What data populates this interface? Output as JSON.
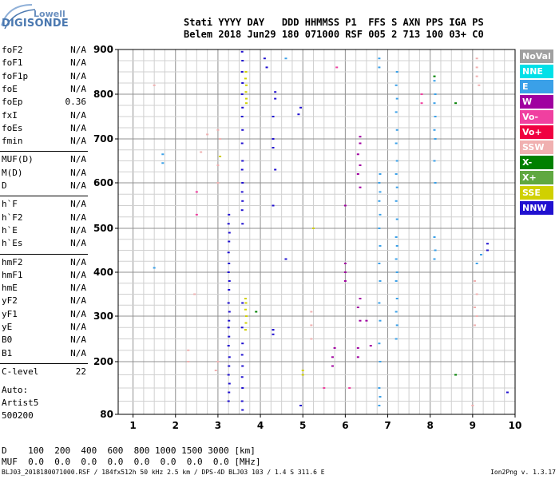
{
  "logo": {
    "line1": "Lowell",
    "line2": "DIGISONDE"
  },
  "header": {
    "line1": "Stati YYYY DAY   DDD HHMMSS P1  FFS S AXN PPS IGA PS",
    "line2": "Belem 2018 Jun29 180 071000 RSF 005 2 713 100 03+ C0"
  },
  "params": [
    {
      "group": 1,
      "name": "foF2",
      "value": "N/A"
    },
    {
      "group": 1,
      "name": "foF1",
      "value": "N/A"
    },
    {
      "group": 1,
      "name": "foF1p",
      "value": "N/A"
    },
    {
      "group": 1,
      "name": "foE",
      "value": "N/A"
    },
    {
      "group": 1,
      "name": "foEp",
      "value": "0.36"
    },
    {
      "group": 1,
      "name": "fxI",
      "value": "N/A"
    },
    {
      "group": 1,
      "name": "foEs",
      "value": "N/A"
    },
    {
      "group": 1,
      "name": "fmin",
      "value": "N/A"
    },
    {
      "group": 2,
      "name": "MUF(D)",
      "value": "N/A"
    },
    {
      "group": 2,
      "name": "M(D)",
      "value": "N/A"
    },
    {
      "group": 2,
      "name": "D",
      "value": "N/A"
    },
    {
      "group": 3,
      "name": "h`F",
      "value": "N/A"
    },
    {
      "group": 3,
      "name": "h`F2",
      "value": "N/A"
    },
    {
      "group": 3,
      "name": "h`E",
      "value": "N/A"
    },
    {
      "group": 3,
      "name": "h`Es",
      "value": "N/A"
    },
    {
      "group": 4,
      "name": "hmF2",
      "value": "N/A"
    },
    {
      "group": 4,
      "name": "hmF1",
      "value": "N/A"
    },
    {
      "group": 4,
      "name": "hmE",
      "value": "N/A"
    },
    {
      "group": 4,
      "name": "yF2",
      "value": "N/A"
    },
    {
      "group": 4,
      "name": "yF1",
      "value": "N/A"
    },
    {
      "group": 4,
      "name": "yE",
      "value": "N/A"
    },
    {
      "group": 4,
      "name": "B0",
      "value": "N/A"
    },
    {
      "group": 4,
      "name": "B1",
      "value": "N/A"
    },
    {
      "group": 5,
      "name": "C-level",
      "value": "22"
    }
  ],
  "auto": {
    "label": "Auto:",
    "artist": "Artist5",
    "version": "500200"
  },
  "mufTable": {
    "row1": "D    100  200  400  600  800 1000 1500 3000 [km]",
    "row2": "MUF  0.0  0.0  0.0  0.0  0.0  0.0  0.0  0.0 [MHz]"
  },
  "footer": {
    "left": "BLJ03_2018180071000.RSF / 184fx512h 50 kHz 2.5 km / DPS-4D BLJ03 103 / 1.4 S 311.6 E",
    "right": "Ion2Png v. 1.3.17"
  },
  "legend": [
    {
      "label": "NoVal",
      "color": "#a0a0a0"
    },
    {
      "label": "NNE",
      "color": "#00e0e8"
    },
    {
      "label": "E",
      "color": "#3aa0e8"
    },
    {
      "label": "W",
      "color": "#a000a0"
    },
    {
      "label": "Vo-",
      "color": "#f040a0"
    },
    {
      "label": "Vo+",
      "color": "#f00040"
    },
    {
      "label": "SSW",
      "color": "#f0b0b0"
    },
    {
      "label": "X-",
      "color": "#008000"
    },
    {
      "label": "X+",
      "color": "#60a840"
    },
    {
      "label": "SSE",
      "color": "#d0d000"
    },
    {
      "label": "NNW",
      "color": "#2010d0"
    }
  ],
  "chart_data": {
    "type": "scatter",
    "title": "",
    "xlabel": "",
    "ylabel": "",
    "xlim": [
      0.65,
      10.0
    ],
    "ylim": [
      80,
      900
    ],
    "xticks": [
      "1",
      "2",
      "3",
      "4",
      "5",
      "6",
      "7",
      "8",
      "9",
      "10"
    ],
    "yticks": [
      "80",
      "200",
      "300",
      "400",
      "500",
      "600",
      "700",
      "800",
      "900"
    ],
    "grid": true,
    "series": [
      {
        "name": "NNW",
        "color": "#2010d0",
        "points": [
          [
            3.25,
            110
          ],
          [
            3.26,
            130
          ],
          [
            3.27,
            150
          ],
          [
            3.25,
            170
          ],
          [
            3.26,
            190
          ],
          [
            3.27,
            210
          ],
          [
            3.25,
            235
          ],
          [
            3.26,
            255
          ],
          [
            3.25,
            275
          ],
          [
            3.26,
            290
          ],
          [
            3.27,
            310
          ],
          [
            3.25,
            330
          ],
          [
            3.26,
            360
          ],
          [
            3.27,
            380
          ],
          [
            3.25,
            400
          ],
          [
            3.26,
            420
          ],
          [
            3.25,
            445
          ],
          [
            3.26,
            470
          ],
          [
            3.27,
            490
          ],
          [
            3.25,
            510
          ],
          [
            3.26,
            530
          ],
          [
            3.58,
            90
          ],
          [
            3.57,
            110
          ],
          [
            3.58,
            140
          ],
          [
            3.57,
            165
          ],
          [
            3.58,
            190
          ],
          [
            3.57,
            215
          ],
          [
            3.58,
            240
          ],
          [
            3.57,
            275
          ],
          [
            3.58,
            330
          ],
          [
            3.58,
            510
          ],
          [
            3.57,
            540
          ],
          [
            3.58,
            560
          ],
          [
            3.57,
            580
          ],
          [
            3.58,
            600
          ],
          [
            3.57,
            630
          ],
          [
            3.58,
            650
          ],
          [
            3.57,
            690
          ],
          [
            3.58,
            720
          ],
          [
            3.57,
            750
          ],
          [
            3.58,
            770
          ],
          [
            3.57,
            800
          ],
          [
            3.58,
            825
          ],
          [
            3.57,
            850
          ],
          [
            3.58,
            875
          ],
          [
            3.57,
            895
          ],
          [
            4.15,
            860
          ],
          [
            4.1,
            880
          ],
          [
            4.3,
            700
          ],
          [
            4.3,
            750
          ],
          [
            4.35,
            790
          ],
          [
            4.35,
            805
          ],
          [
            4.9,
            755
          ],
          [
            4.95,
            770
          ],
          [
            4.3,
            260
          ],
          [
            4.3,
            270
          ],
          [
            4.3,
            550
          ],
          [
            4.35,
            630
          ],
          [
            4.3,
            680
          ],
          [
            4.3,
            270
          ],
          [
            9.35,
            465
          ],
          [
            9.35,
            450
          ],
          [
            9.82,
            130
          ],
          [
            4.6,
            430
          ],
          [
            4.95,
            100
          ]
        ]
      },
      {
        "name": "SSE",
        "color": "#d0d000",
        "points": [
          [
            3.65,
            270
          ],
          [
            3.66,
            285
          ],
          [
            3.67,
            300
          ],
          [
            3.65,
            315
          ],
          [
            3.66,
            330
          ],
          [
            3.65,
            340
          ],
          [
            3.67,
            790
          ],
          [
            3.66,
            805
          ],
          [
            3.67,
            820
          ],
          [
            3.65,
            835
          ],
          [
            3.66,
            850
          ],
          [
            3.67,
            780
          ],
          [
            3.05,
            660
          ],
          [
            5.25,
            500
          ],
          [
            5.0,
            170
          ],
          [
            5.0,
            180
          ]
        ]
      },
      {
        "name": "E",
        "color": "#3aa0e8",
        "points": [
          [
            6.8,
            100
          ],
          [
            6.82,
            120
          ],
          [
            6.8,
            140
          ],
          [
            6.82,
            200
          ],
          [
            6.8,
            240
          ],
          [
            6.82,
            290
          ],
          [
            6.8,
            330
          ],
          [
            6.82,
            380
          ],
          [
            6.8,
            420
          ],
          [
            6.82,
            460
          ],
          [
            6.8,
            500
          ],
          [
            6.82,
            530
          ],
          [
            6.8,
            560
          ],
          [
            6.82,
            580
          ],
          [
            6.8,
            600
          ],
          [
            6.82,
            620
          ],
          [
            7.2,
            250
          ],
          [
            7.22,
            280
          ],
          [
            7.2,
            310
          ],
          [
            7.22,
            340
          ],
          [
            7.2,
            380
          ],
          [
            7.22,
            400
          ],
          [
            7.2,
            430
          ],
          [
            7.22,
            460
          ],
          [
            7.2,
            480
          ],
          [
            7.22,
            520
          ],
          [
            7.2,
            560
          ],
          [
            7.22,
            590
          ],
          [
            7.2,
            620
          ],
          [
            7.22,
            650
          ],
          [
            7.2,
            690
          ],
          [
            7.22,
            720
          ],
          [
            7.2,
            760
          ],
          [
            7.22,
            790
          ],
          [
            7.2,
            820
          ],
          [
            7.22,
            850
          ],
          [
            8.1,
            430
          ],
          [
            8.12,
            450
          ],
          [
            8.1,
            480
          ],
          [
            8.12,
            600
          ],
          [
            8.1,
            650
          ],
          [
            8.12,
            700
          ],
          [
            8.1,
            720
          ],
          [
            8.12,
            750
          ],
          [
            8.1,
            780
          ],
          [
            8.12,
            800
          ],
          [
            8.1,
            830
          ],
          [
            4.6,
            880
          ],
          [
            1.5,
            410
          ],
          [
            1.7,
            645
          ],
          [
            1.7,
            665
          ],
          [
            9.1,
            420
          ],
          [
            9.2,
            440
          ],
          [
            6.8,
            880
          ],
          [
            6.8,
            860
          ]
        ]
      },
      {
        "name": "W",
        "color": "#a000a0",
        "points": [
          [
            6.3,
            210
          ],
          [
            6.3,
            230
          ],
          [
            6.35,
            290
          ],
          [
            6.3,
            320
          ],
          [
            6.35,
            340
          ],
          [
            6.35,
            590
          ],
          [
            6.3,
            620
          ],
          [
            6.35,
            640
          ],
          [
            6.3,
            665
          ],
          [
            6.35,
            690
          ],
          [
            6.35,
            705
          ],
          [
            6.0,
            380
          ],
          [
            6.0,
            400
          ],
          [
            6.0,
            420
          ],
          [
            6.0,
            550
          ],
          [
            5.7,
            190
          ],
          [
            5.7,
            210
          ],
          [
            5.75,
            230
          ],
          [
            6.5,
            290
          ],
          [
            6.6,
            235
          ]
        ]
      },
      {
        "name": "SSW",
        "color": "#f0b0b0",
        "points": [
          [
            3.0,
            600
          ],
          [
            3.0,
            640
          ],
          [
            3.05,
            700
          ],
          [
            3.0,
            720
          ],
          [
            2.95,
            180
          ],
          [
            3.0,
            200
          ],
          [
            2.3,
            225
          ],
          [
            2.3,
            200
          ],
          [
            9.1,
            880
          ],
          [
            9.1,
            860
          ],
          [
            9.1,
            840
          ],
          [
            9.15,
            820
          ],
          [
            9.05,
            380
          ],
          [
            9.1,
            350
          ],
          [
            9.05,
            320
          ],
          [
            9.1,
            300
          ],
          [
            9.05,
            280
          ],
          [
            9.0,
            100
          ],
          [
            5.2,
            250
          ],
          [
            5.2,
            280
          ],
          [
            5.2,
            310
          ],
          [
            1.5,
            820
          ],
          [
            2.45,
            350
          ],
          [
            2.75,
            710
          ],
          [
            2.6,
            670
          ]
        ]
      },
      {
        "name": "X-",
        "color": "#008000",
        "points": [
          [
            8.6,
            780
          ],
          [
            8.6,
            170
          ],
          [
            8.1,
            840
          ],
          [
            3.9,
            310
          ]
        ]
      },
      {
        "name": "Vo-",
        "color": "#f040a0",
        "points": [
          [
            7.8,
            800
          ],
          [
            7.8,
            780
          ],
          [
            5.5,
            140
          ],
          [
            6.1,
            140
          ],
          [
            5.8,
            860
          ],
          [
            2.5,
            580
          ],
          [
            2.5,
            530
          ]
        ]
      }
    ]
  }
}
